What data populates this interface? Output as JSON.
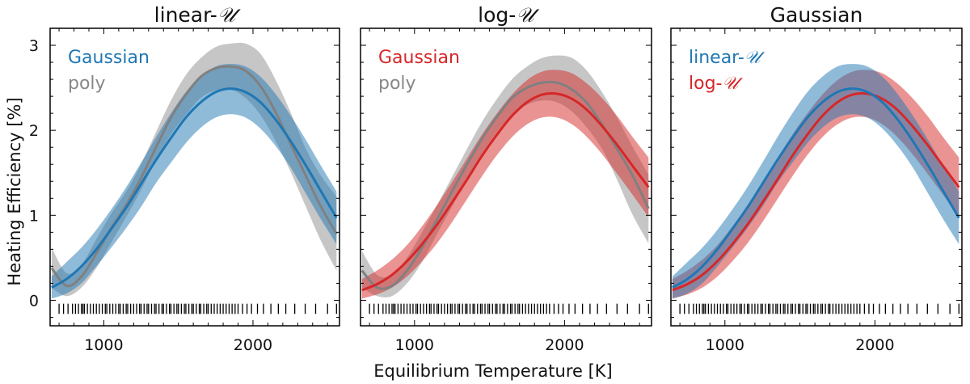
{
  "chart_data": {
    "type": "line",
    "xlabel": "Equilibrium Temperature [K]",
    "ylabel": "Heating Efficiency [%]",
    "xlim": [
      640,
      2580
    ],
    "ylim": [
      -0.3,
      3.2
    ],
    "xticks": [
      1000,
      2000
    ],
    "xtick_labels": [
      "1000",
      "2000"
    ],
    "yticks": [
      0,
      1,
      2,
      3
    ],
    "ytick_labels": [
      "0",
      "1",
      "2",
      "3"
    ],
    "rug_x": [
      700,
      730,
      760,
      790,
      810,
      830,
      850,
      860,
      870,
      890,
      910,
      930,
      950,
      970,
      990,
      1010,
      1020,
      1040,
      1060,
      1080,
      1100,
      1110,
      1130,
      1150,
      1160,
      1180,
      1200,
      1220,
      1240,
      1250,
      1270,
      1290,
      1300,
      1320,
      1340,
      1350,
      1370,
      1390,
      1400,
      1420,
      1440,
      1450,
      1470,
      1490,
      1500,
      1520,
      1540,
      1550,
      1570,
      1590,
      1600,
      1620,
      1640,
      1650,
      1670,
      1690,
      1700,
      1720,
      1740,
      1760,
      1780,
      1800,
      1820,
      1840,
      1860,
      1880,
      1900,
      1930,
      1960,
      1990,
      2030,
      2070,
      2120,
      2170,
      2220,
      2280,
      2350,
      2420,
      2500,
      2560
    ],
    "colors": {
      "gaussian_lin": "#1f77b4",
      "gaussian_log": "#d62728",
      "poly": "#808080"
    },
    "panels": [
      {
        "title_text": "linear-",
        "title_math": "𝒰",
        "legend": [
          {
            "text": "Gaussian",
            "math": "",
            "color": "#1f77b4"
          },
          {
            "text": "poly",
            "math": "",
            "color": "#888888"
          }
        ],
        "series": [
          {
            "name": "poly",
            "color": "#808080",
            "x": [
              650,
              750,
              850,
              950,
              1050,
              1150,
              1250,
              1350,
              1450,
              1550,
              1650,
              1750,
              1850,
              1950,
              2050,
              2150,
              2250,
              2350,
              2450,
              2560
            ],
            "mean": [
              0.38,
              0.17,
              0.28,
              0.55,
              0.85,
              1.12,
              1.44,
              1.8,
              2.15,
              2.42,
              2.63,
              2.73,
              2.75,
              2.7,
              2.52,
              2.22,
              1.85,
              1.48,
              1.12,
              0.78
            ],
            "lower": [
              0.15,
              0.05,
              0.15,
              0.38,
              0.68,
              0.98,
              1.3,
              1.65,
              1.95,
              2.18,
              2.38,
              2.47,
              2.48,
              2.38,
              2.18,
              1.88,
              1.52,
              1.12,
              0.72,
              0.35
            ],
            "upper": [
              0.62,
              0.32,
              0.42,
              0.72,
              1.02,
              1.28,
              1.6,
              1.98,
              2.35,
              2.65,
              2.85,
              2.98,
              3.02,
              3.02,
              2.9,
              2.6,
              2.22,
              1.8,
              1.48,
              1.22
            ]
          },
          {
            "name": "Gaussian",
            "color": "#1f77b4",
            "x": [
              650,
              750,
              850,
              950,
              1050,
              1150,
              1250,
              1350,
              1450,
              1550,
              1650,
              1750,
              1850,
              1950,
              2050,
              2150,
              2250,
              2350,
              2450,
              2560
            ],
            "mean": [
              0.15,
              0.25,
              0.4,
              0.6,
              0.84,
              1.09,
              1.37,
              1.65,
              1.91,
              2.15,
              2.33,
              2.45,
              2.49,
              2.45,
              2.33,
              2.13,
              1.88,
              1.6,
              1.3,
              0.97
            ],
            "lower": [
              0.02,
              0.08,
              0.2,
              0.4,
              0.62,
              0.85,
              1.1,
              1.38,
              1.62,
              1.85,
              2.03,
              2.15,
              2.19,
              2.15,
              2.02,
              1.82,
              1.57,
              1.27,
              0.97,
              0.66
            ],
            "upper": [
              0.28,
              0.45,
              0.62,
              0.83,
              1.07,
              1.33,
              1.62,
              1.92,
              2.2,
              2.45,
              2.63,
              2.75,
              2.78,
              2.75,
              2.63,
              2.43,
              2.18,
              1.9,
              1.6,
              1.28
            ]
          }
        ]
      },
      {
        "title_text": "log-",
        "title_math": "𝒰",
        "legend": [
          {
            "text": "Gaussian",
            "math": "",
            "color": "#d62728"
          },
          {
            "text": "poly",
            "math": "",
            "color": "#888888"
          }
        ],
        "series": [
          {
            "name": "poly",
            "color": "#808080",
            "x": [
              650,
              750,
              850,
              950,
              1050,
              1150,
              1250,
              1350,
              1450,
              1550,
              1650,
              1750,
              1850,
              1950,
              2050,
              2150,
              2250,
              2350,
              2450,
              2560
            ],
            "mean": [
              0.35,
              0.15,
              0.17,
              0.35,
              0.62,
              0.95,
              1.28,
              1.6,
              1.9,
              2.16,
              2.38,
              2.5,
              2.56,
              2.56,
              2.48,
              2.32,
              2.07,
              1.78,
              1.48,
              1.08
            ],
            "lower": [
              0.15,
              0.05,
              0.05,
              0.2,
              0.45,
              0.78,
              1.1,
              1.42,
              1.72,
              1.98,
              2.18,
              2.3,
              2.35,
              2.33,
              2.22,
              2.03,
              1.78,
              1.42,
              1.02,
              0.67
            ],
            "upper": [
              0.58,
              0.3,
              0.3,
              0.5,
              0.8,
              1.12,
              1.45,
              1.78,
              2.1,
              2.37,
              2.6,
              2.75,
              2.85,
              2.88,
              2.85,
              2.7,
              2.45,
              2.15,
              1.82,
              1.48
            ]
          },
          {
            "name": "Gaussian",
            "color": "#d62728",
            "x": [
              650,
              750,
              850,
              950,
              1050,
              1150,
              1250,
              1350,
              1450,
              1550,
              1650,
              1750,
              1850,
              1950,
              2050,
              2150,
              2250,
              2350,
              2450,
              2560
            ],
            "mean": [
              0.12,
              0.19,
              0.3,
              0.46,
              0.66,
              0.89,
              1.15,
              1.42,
              1.7,
              1.95,
              2.17,
              2.33,
              2.42,
              2.43,
              2.37,
              2.24,
              2.05,
              1.83,
              1.59,
              1.33
            ],
            "lower": [
              0.02,
              0.07,
              0.15,
              0.28,
              0.46,
              0.67,
              0.92,
              1.19,
              1.46,
              1.71,
              1.92,
              2.07,
              2.15,
              2.15,
              2.07,
              1.92,
              1.72,
              1.49,
              1.25,
              0.98
            ],
            "upper": [
              0.25,
              0.35,
              0.48,
              0.65,
              0.87,
              1.12,
              1.39,
              1.67,
              1.95,
              2.2,
              2.42,
              2.59,
              2.69,
              2.71,
              2.67,
              2.55,
              2.38,
              2.17,
              1.93,
              1.68
            ]
          }
        ]
      },
      {
        "title_text": "Gaussian",
        "title_math": "",
        "legend": [
          {
            "text": "linear-",
            "math": "𝒰",
            "color": "#1f77b4"
          },
          {
            "text": "log-",
            "math": "𝒰",
            "color": "#d62728"
          }
        ],
        "series": [
          {
            "name": "log-U",
            "color": "#d62728",
            "x": [
              650,
              750,
              850,
              950,
              1050,
              1150,
              1250,
              1350,
              1450,
              1550,
              1650,
              1750,
              1850,
              1950,
              2050,
              2150,
              2250,
              2350,
              2450,
              2560
            ],
            "mean": [
              0.12,
              0.19,
              0.3,
              0.46,
              0.66,
              0.89,
              1.15,
              1.42,
              1.7,
              1.95,
              2.17,
              2.33,
              2.42,
              2.43,
              2.37,
              2.24,
              2.05,
              1.83,
              1.59,
              1.33
            ],
            "lower": [
              0.02,
              0.07,
              0.15,
              0.28,
              0.46,
              0.67,
              0.92,
              1.19,
              1.46,
              1.71,
              1.92,
              2.07,
              2.15,
              2.15,
              2.07,
              1.92,
              1.72,
              1.49,
              1.25,
              0.98
            ],
            "upper": [
              0.25,
              0.35,
              0.48,
              0.65,
              0.87,
              1.12,
              1.39,
              1.67,
              1.95,
              2.2,
              2.42,
              2.59,
              2.69,
              2.71,
              2.67,
              2.55,
              2.38,
              2.17,
              1.93,
              1.68
            ]
          },
          {
            "name": "linear-U",
            "color": "#1f77b4",
            "x": [
              650,
              750,
              850,
              950,
              1050,
              1150,
              1250,
              1350,
              1450,
              1550,
              1650,
              1750,
              1850,
              1950,
              2050,
              2150,
              2250,
              2350,
              2450,
              2560
            ],
            "mean": [
              0.15,
              0.25,
              0.4,
              0.6,
              0.84,
              1.09,
              1.37,
              1.65,
              1.91,
              2.15,
              2.33,
              2.45,
              2.49,
              2.45,
              2.33,
              2.13,
              1.88,
              1.6,
              1.3,
              0.97
            ],
            "lower": [
              0.02,
              0.08,
              0.2,
              0.4,
              0.62,
              0.85,
              1.1,
              1.38,
              1.62,
              1.85,
              2.03,
              2.15,
              2.19,
              2.15,
              2.02,
              1.82,
              1.57,
              1.27,
              0.97,
              0.66
            ],
            "upper": [
              0.28,
              0.45,
              0.62,
              0.83,
              1.07,
              1.33,
              1.62,
              1.92,
              2.2,
              2.45,
              2.63,
              2.75,
              2.78,
              2.75,
              2.63,
              2.43,
              2.18,
              1.9,
              1.6,
              1.28
            ]
          }
        ]
      }
    ]
  }
}
